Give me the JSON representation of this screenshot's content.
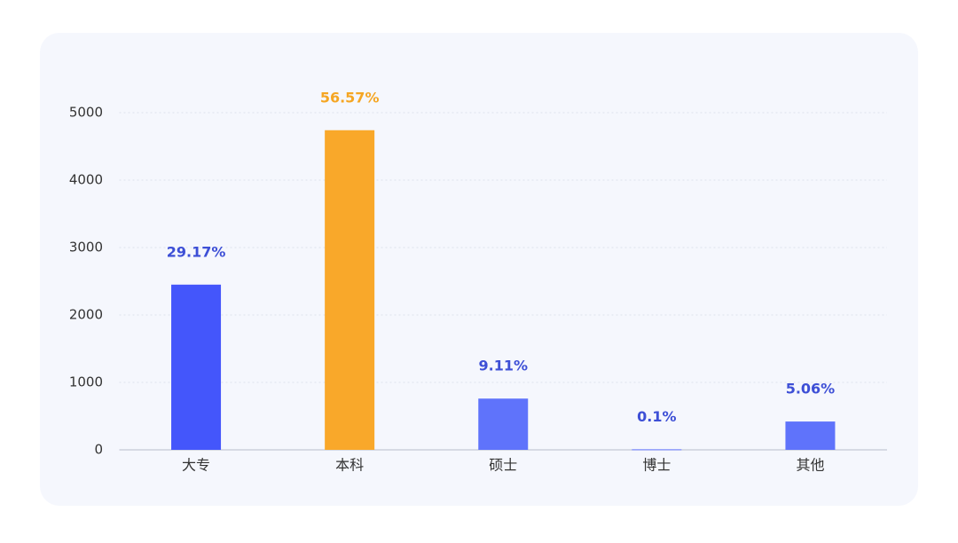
{
  "chart_data": {
    "type": "bar",
    "categories": [
      "大专",
      "本科",
      "硕士",
      "博士",
      "其他"
    ],
    "values": [
      2450,
      4740,
      760,
      8,
      420
    ],
    "value_labels": [
      "29.17%",
      "56.57%",
      "9.11%",
      "0.1%",
      "5.06%"
    ],
    "colors": [
      "#4456fb",
      "#f9a82a",
      "#5f73fb",
      "#5f73fb",
      "#5f73fb"
    ],
    "label_colors": [
      "#3d4fd6",
      "#f5a623",
      "#3d4fd6",
      "#3d4fd6",
      "#3d4fd6"
    ],
    "ylim": [
      0,
      5000
    ],
    "yticks": [
      0,
      1000,
      2000,
      3000,
      4000,
      5000
    ],
    "grid": true
  }
}
